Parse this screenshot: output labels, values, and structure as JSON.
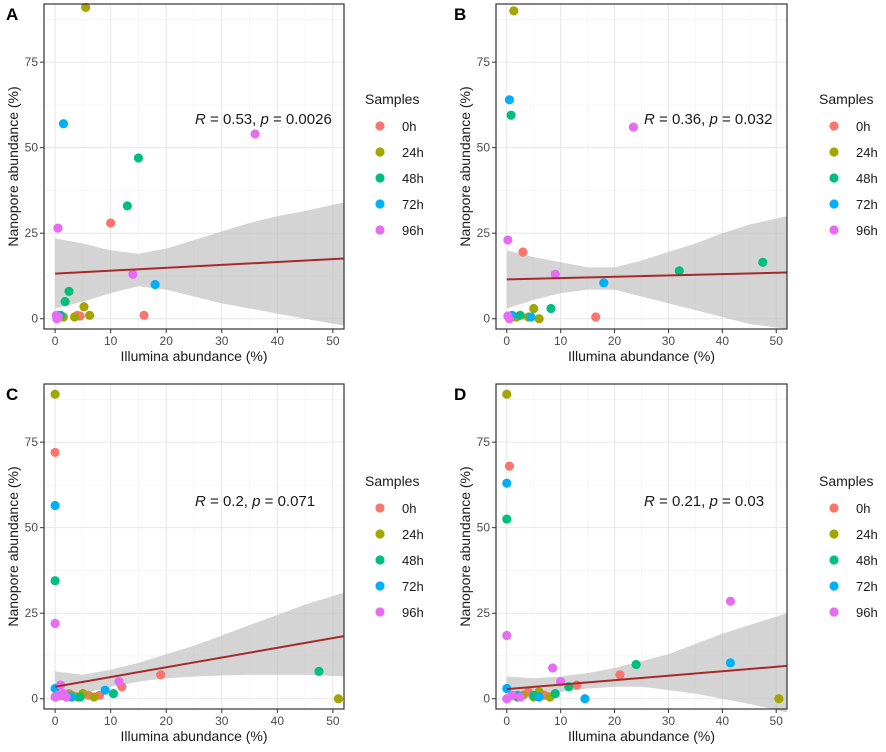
{
  "chart_data": [
    {
      "panel_label": "A",
      "type": "scatter",
      "xlabel": "Illumina abundance (%)",
      "ylabel": "Nanopore abundance (%)",
      "xlim": [
        -2,
        52
      ],
      "ylim": [
        -3,
        92
      ],
      "xticks": [
        0,
        10,
        20,
        30,
        40,
        50
      ],
      "yticks": [
        0,
        25,
        50,
        75
      ],
      "stat": {
        "r": "0.53",
        "p": "0.0026"
      },
      "fit": {
        "y_at_0": 13.2,
        "y_at_52": 17.6,
        "ci_x": [
          0,
          5,
          10,
          15,
          20,
          25,
          30,
          35,
          40,
          45,
          52
        ],
        "ci_lo": [
          3,
          5,
          7.5,
          9.5,
          8.5,
          6.5,
          4.5,
          3,
          1.5,
          0,
          -2
        ],
        "ci_hi": [
          23.5,
          22,
          20,
          19,
          20.5,
          23,
          25.5,
          28,
          30,
          31.5,
          34
        ]
      },
      "legend": {
        "title": "Samples",
        "entries": [
          "0h",
          "24h",
          "48h",
          "72h",
          "96h"
        ],
        "colors": [
          "#f8766d",
          "#a3a500",
          "#00bf7d",
          "#00b0f6",
          "#e76bf3"
        ]
      },
      "series": [
        {
          "name": "0h",
          "points": [
            [
              10,
              28
            ],
            [
              16,
              1
            ],
            [
              4,
              1
            ],
            [
              4.5,
              0.8
            ]
          ]
        },
        {
          "name": "24h",
          "points": [
            [
              5.5,
              91
            ],
            [
              5.2,
              3.5
            ],
            [
              6.2,
              1
            ],
            [
              1.5,
              0.5
            ],
            [
              3.5,
              0.5
            ]
          ]
        },
        {
          "name": "48h",
          "points": [
            [
              15,
              47
            ],
            [
              13,
              33
            ],
            [
              2.5,
              8
            ],
            [
              1.8,
              5
            ],
            [
              1,
              1
            ]
          ]
        },
        {
          "name": "72h",
          "points": [
            [
              1.5,
              57
            ],
            [
              18,
              10
            ],
            [
              0.5,
              1
            ]
          ]
        },
        {
          "name": "96h",
          "points": [
            [
              36,
              54
            ],
            [
              0.5,
              26.5
            ],
            [
              14,
              13
            ],
            [
              0.2,
              1
            ],
            [
              0.6,
              0.5
            ],
            [
              0.3,
              0
            ]
          ]
        }
      ]
    },
    {
      "panel_label": "B",
      "type": "scatter",
      "xlabel": "Illumina abundance (%)",
      "ylabel": "Nanopore abundance (%)",
      "xlim": [
        -2,
        52
      ],
      "ylim": [
        -3,
        92
      ],
      "xticks": [
        0,
        10,
        20,
        30,
        40,
        50
      ],
      "yticks": [
        0,
        25,
        50,
        75
      ],
      "stat": {
        "r": "0.36",
        "p": "0.032"
      },
      "fit": {
        "y_at_0": 11.5,
        "y_at_52": 13.5,
        "ci_x": [
          0,
          5,
          10,
          15,
          20,
          25,
          30,
          35,
          40,
          45,
          52
        ],
        "ci_lo": [
          3,
          5.5,
          7.5,
          8.5,
          8.5,
          6.5,
          4.5,
          2.5,
          0.5,
          -1.5,
          -3
        ],
        "ci_hi": [
          20,
          18,
          16.5,
          15,
          15,
          17,
          19.5,
          22,
          25,
          27.5,
          30
        ]
      },
      "legend": {
        "title": "Samples",
        "entries": [
          "0h",
          "24h",
          "48h",
          "72h",
          "96h"
        ],
        "colors": [
          "#f8766d",
          "#a3a500",
          "#00bf7d",
          "#00b0f6",
          "#e76bf3"
        ]
      },
      "series": [
        {
          "name": "0h",
          "points": [
            [
              3,
              19.5
            ],
            [
              16.5,
              0.5
            ],
            [
              1,
              0.5
            ]
          ]
        },
        {
          "name": "24h",
          "points": [
            [
              1.3,
              90
            ],
            [
              5,
              3
            ],
            [
              6,
              0
            ],
            [
              1.8,
              0.5
            ],
            [
              4,
              0.5
            ]
          ]
        },
        {
          "name": "48h",
          "points": [
            [
              0.8,
              59.5
            ],
            [
              32,
              14
            ],
            [
              47.5,
              16.5
            ],
            [
              8.2,
              3
            ],
            [
              2.5,
              1
            ]
          ]
        },
        {
          "name": "72h",
          "points": [
            [
              0.5,
              64
            ],
            [
              18,
              10.5
            ],
            [
              4.5,
              0.5
            ],
            [
              1,
              1
            ]
          ]
        },
        {
          "name": "96h",
          "points": [
            [
              23.5,
              56
            ],
            [
              0.2,
              23
            ],
            [
              9,
              13
            ],
            [
              0.2,
              0.8
            ],
            [
              0.5,
              0
            ]
          ]
        }
      ]
    },
    {
      "panel_label": "C",
      "type": "scatter",
      "xlabel": "Illumina abundance (%)",
      "ylabel": "Nanopore abundance (%)",
      "xlim": [
        -2,
        52
      ],
      "ylim": [
        -3,
        92
      ],
      "xticks": [
        0,
        10,
        20,
        30,
        40,
        50
      ],
      "yticks": [
        0,
        25,
        50,
        75
      ],
      "stat": {
        "r": "0.2",
        "p": "0.071"
      },
      "fit": {
        "y_at_0": 3.5,
        "y_at_52": 18.3,
        "ci_x": [
          0,
          5,
          10,
          15,
          20,
          25,
          30,
          35,
          40,
          45,
          52
        ],
        "ci_lo": [
          -1,
          1.5,
          3.5,
          5,
          6,
          6.5,
          6.8,
          7,
          7,
          7,
          6.5
        ],
        "ci_hi": [
          8,
          7,
          8.5,
          10.5,
          13,
          15.5,
          18.5,
          21.5,
          24.5,
          27.5,
          31
        ]
      },
      "legend": {
        "title": "Samples",
        "entries": [
          "0h",
          "24h",
          "48h",
          "72h",
          "96h"
        ],
        "colors": [
          "#f8766d",
          "#a3a500",
          "#00bf7d",
          "#00b0f6",
          "#e76bf3"
        ]
      },
      "series": [
        {
          "name": "0h",
          "points": [
            [
              0,
              72
            ],
            [
              19,
              7
            ],
            [
              12,
              3.5
            ],
            [
              2.5,
              1.5
            ],
            [
              6,
              1
            ],
            [
              8,
              1
            ]
          ]
        },
        {
          "name": "24h",
          "points": [
            [
              0,
              89
            ],
            [
              51,
              0
            ],
            [
              3,
              1
            ],
            [
              4,
              0.5
            ],
            [
              5,
              1.5
            ],
            [
              7,
              0.5
            ]
          ]
        },
        {
          "name": "48h",
          "points": [
            [
              0,
              34.5
            ],
            [
              47.5,
              8
            ],
            [
              10.5,
              1.5
            ],
            [
              4.5,
              0.5
            ],
            [
              2,
              1
            ]
          ]
        },
        {
          "name": "72h",
          "points": [
            [
              0,
              56.5
            ],
            [
              9,
              2.5
            ],
            [
              1,
              1
            ],
            [
              3,
              0.5
            ],
            [
              0,
              3
            ]
          ]
        },
        {
          "name": "96h",
          "points": [
            [
              0,
              22
            ],
            [
              11.5,
              5
            ],
            [
              1,
              4
            ],
            [
              0.5,
              1
            ],
            [
              2,
              0.5
            ],
            [
              1.5,
              1.5
            ],
            [
              0,
              0.5
            ]
          ]
        }
      ]
    },
    {
      "panel_label": "D",
      "type": "scatter",
      "xlabel": "Illumina abundance (%)",
      "ylabel": "Nanopore abundance (%)",
      "xlim": [
        -2,
        52
      ],
      "ylim": [
        -3,
        92
      ],
      "xticks": [
        0,
        10,
        20,
        30,
        40,
        50
      ],
      "yticks": [
        0,
        25,
        50,
        75
      ],
      "stat": {
        "r": "0.21",
        "p": "0.03"
      },
      "fit": {
        "y_at_0": 2.8,
        "y_at_52": 9.6,
        "ci_x": [
          0,
          5,
          10,
          15,
          20,
          25,
          30,
          35,
          40,
          45,
          52
        ],
        "ci_lo": [
          -1,
          0.5,
          2,
          3,
          3.5,
          3.5,
          2.5,
          1.5,
          0,
          -1.5,
          -4
        ],
        "ci_hi": [
          6.5,
          6,
          6.5,
          7.5,
          9,
          11,
          13,
          16,
          19,
          21.5,
          25
        ]
      },
      "legend": {
        "title": "Samples",
        "entries": [
          "0h",
          "24h",
          "48h",
          "72h",
          "96h"
        ],
        "colors": [
          "#f8766d",
          "#a3a500",
          "#00bf7d",
          "#00b0f6",
          "#e76bf3"
        ]
      },
      "series": [
        {
          "name": "0h",
          "points": [
            [
              0.5,
              68
            ],
            [
              21,
              7
            ],
            [
              13,
              4
            ],
            [
              4,
              2
            ],
            [
              7,
              1
            ]
          ]
        },
        {
          "name": "24h",
          "points": [
            [
              0,
              89
            ],
            [
              50.5,
              0
            ],
            [
              3,
              1
            ],
            [
              5,
              0.5
            ],
            [
              6,
              2
            ],
            [
              8,
              0.5
            ]
          ]
        },
        {
          "name": "48h",
          "points": [
            [
              0,
              52.5
            ],
            [
              24,
              10
            ],
            [
              11.5,
              3.5
            ],
            [
              5,
              1
            ],
            [
              2,
              0.5
            ],
            [
              9,
              1.5
            ]
          ]
        },
        {
          "name": "72h",
          "points": [
            [
              0,
              63
            ],
            [
              41.5,
              10.5
            ],
            [
              14.5,
              0
            ],
            [
              0,
              3
            ],
            [
              2,
              1
            ],
            [
              6,
              0.5
            ]
          ]
        },
        {
          "name": "96h",
          "points": [
            [
              0,
              18.5
            ],
            [
              41.5,
              28.5
            ],
            [
              8.5,
              9
            ],
            [
              10,
              5
            ],
            [
              1,
              1
            ],
            [
              2.5,
              0.5
            ],
            [
              0,
              0
            ]
          ]
        }
      ]
    }
  ]
}
